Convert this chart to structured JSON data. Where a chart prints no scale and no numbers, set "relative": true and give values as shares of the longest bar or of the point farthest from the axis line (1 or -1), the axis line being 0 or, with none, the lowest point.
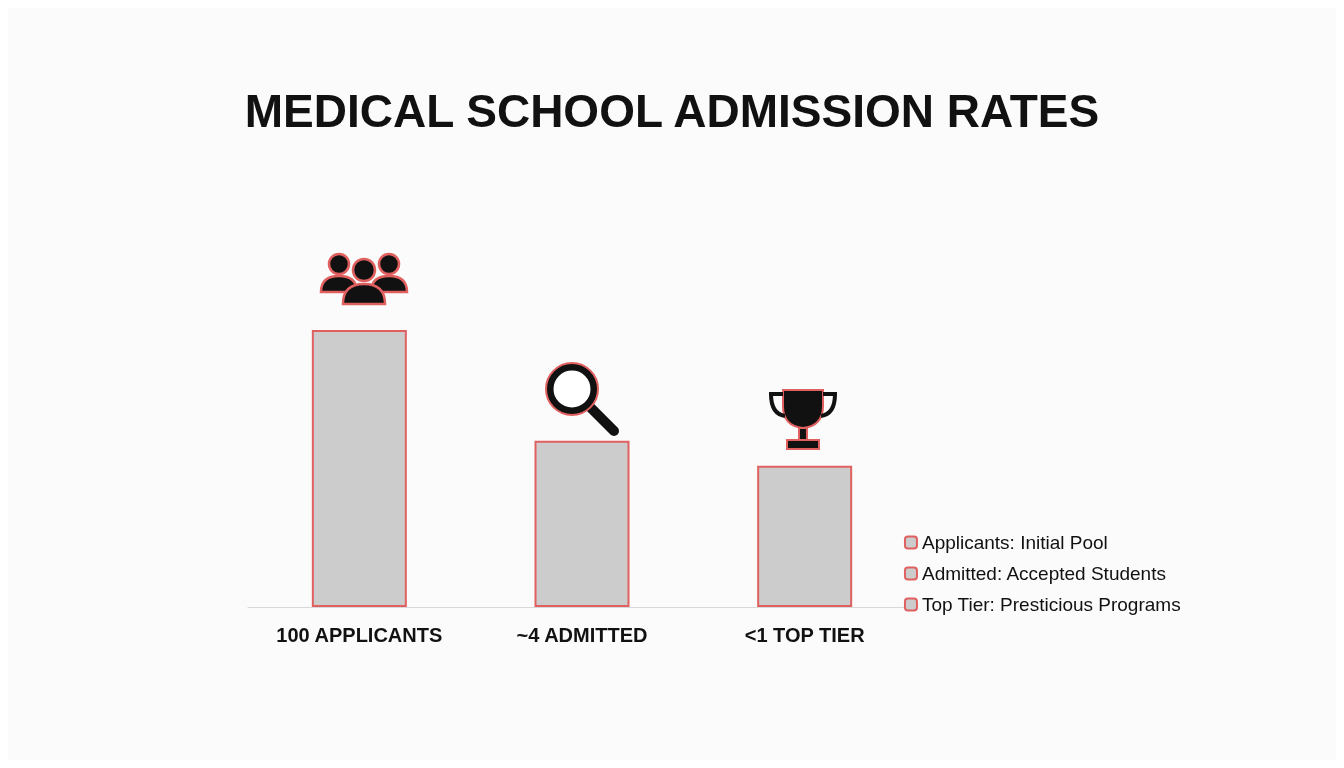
{
  "chart_data": {
    "type": "bar",
    "title": "MEDICAL SCHOOL ADMISSION RATES",
    "categories": [
      "100 APPLICANTS",
      "~4 ADMITTED",
      "<1 TOP TIER"
    ],
    "series": [
      {
        "name": "Applicants: Initial Pool",
        "color": "#cccccc",
        "values": [
          1,
          null,
          null
        ]
      },
      {
        "name": "Admitted: Accepted Students",
        "color": "#cccccc",
        "values": [
          null,
          0.6,
          null
        ]
      },
      {
        "name": "Top Tier: Presticious Programs",
        "color": "#cccccc",
        "values": [
          null,
          null,
          0.51
        ]
      }
    ],
    "stacked": true,
    "relative": true,
    "legend": "right"
  }
}
